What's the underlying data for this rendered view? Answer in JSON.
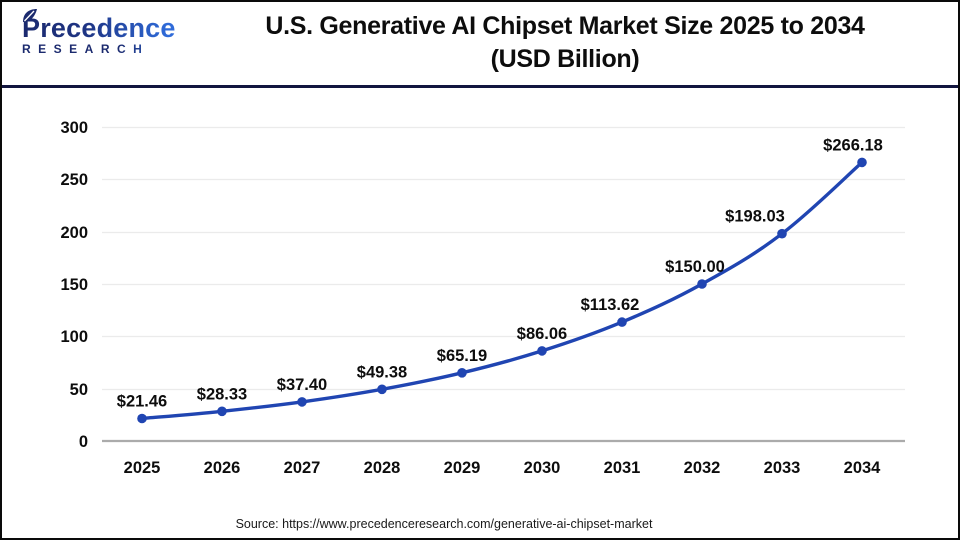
{
  "header": {
    "logo": {
      "name": "Precedence",
      "subname": "RESEARCH"
    },
    "title_line1": "U.S. Generative AI Chipset Market Size 2025 to 2034",
    "title_line2": "(USD Billion)"
  },
  "chart_data": {
    "type": "line",
    "title": "U.S. Generative AI Chipset Market Size 2025 to 2034 (USD Billion)",
    "categories": [
      "2025",
      "2026",
      "2027",
      "2028",
      "2029",
      "2030",
      "2031",
      "2032",
      "2033",
      "2034"
    ],
    "values": [
      21.46,
      28.33,
      37.4,
      49.38,
      65.19,
      86.06,
      113.62,
      150.0,
      198.03,
      266.18
    ],
    "point_labels": [
      "$21.46",
      "$28.33",
      "$37.40",
      "$49.38",
      "$65.19",
      "$86.06",
      "$113.62",
      "$150.00",
      "$198.03",
      "$266.18"
    ],
    "ylim": [
      0,
      300
    ],
    "yticks": [
      0,
      50,
      100,
      150,
      200,
      250,
      300
    ],
    "grid": "horizontal",
    "legend": "none",
    "line_color": "#2045b2",
    "marker_color": "#2045b2",
    "gridline_color": "#ebebeb",
    "axis_line_color": "#ababab",
    "text_color": "#0d0d0d"
  },
  "footer": {
    "source": "Source: https://www.precedenceresearch.com/generative-ai-chipset-market"
  }
}
